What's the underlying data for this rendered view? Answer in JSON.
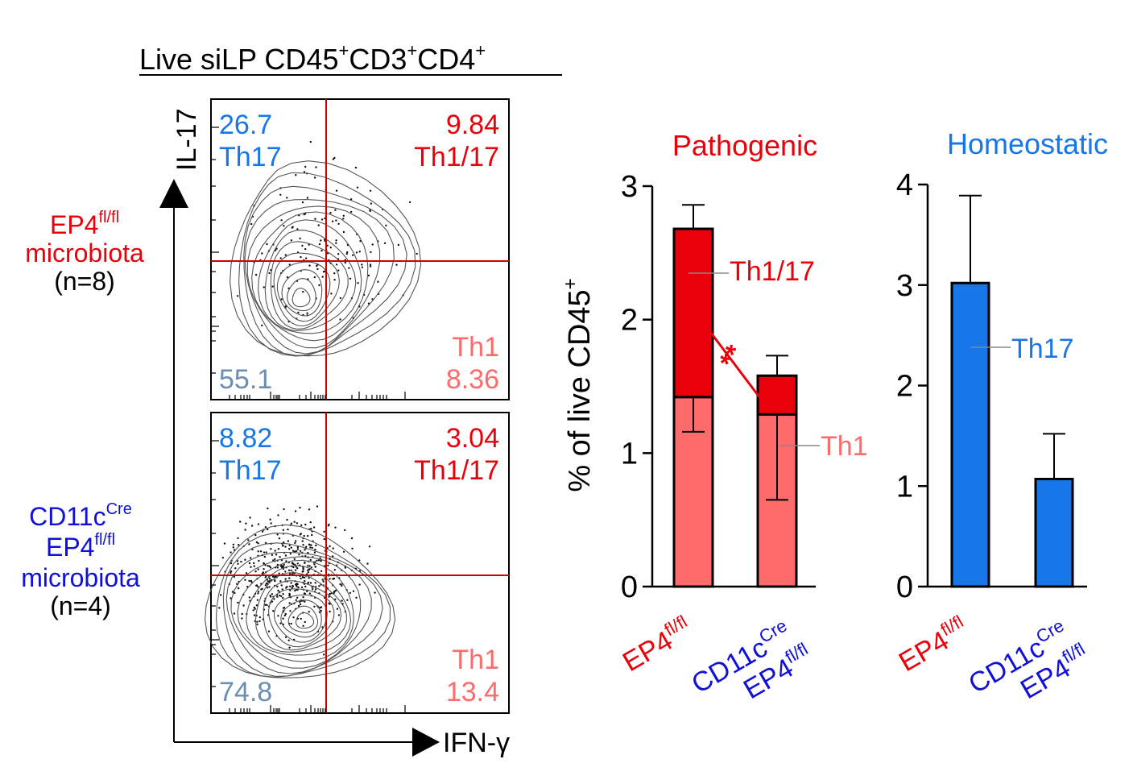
{
  "colors": {
    "red": "#e8000b",
    "th1": "#ff6b6b",
    "blue": "#1877e8",
    "navy": "#1010d8",
    "grey_blue": "#6a8fb3",
    "black": "#000000",
    "gate": "#cc0000"
  },
  "flow": {
    "title": "Live siLP CD45",
    "title_sup1": "+",
    "title_mid1": "CD3",
    "title_sup2": "+",
    "title_mid2": "CD4",
    "title_sup3": "+",
    "y_axis_label": "IL-17",
    "x_axis_label": "IFN-γ",
    "groups": [
      {
        "name": "EP4",
        "name_sup": "fl/fl",
        "line2": "microbiota",
        "n": "(n=8)",
        "q_th17_value": "26.7",
        "q_th17_label": "Th17",
        "q_th117_value": "9.84",
        "q_th117_label": "Th1/17",
        "q_th1_label": "Th1",
        "q_th1_value": "8.36",
        "q_neg_value": "55.1"
      },
      {
        "name": "CD11c",
        "name_sup": "Cre",
        "name2": "EP4",
        "name2_sup": "fl/fl",
        "line3": "microbiota",
        "n": "(n=4)",
        "q_th17_value": "8.82",
        "q_th17_label": "Th17",
        "q_th117_value": "3.04",
        "q_th117_label": "Th1/17",
        "q_th1_label": "Th1",
        "q_th1_value": "13.4",
        "q_neg_value": "74.8"
      }
    ]
  },
  "chart_data": [
    {
      "type": "bar",
      "stacked": true,
      "title": "Pathogenic",
      "ylabel": "% of live CD45",
      "ylabel_sup": "+",
      "ylim": [
        0,
        3
      ],
      "yticks": [
        0,
        1,
        2,
        3
      ],
      "categories": [
        {
          "label": "EP4",
          "sup": "fl/fl"
        },
        {
          "label": "CD11c",
          "sup": "Cre",
          "label2": "EP4",
          "sup2": "fl/fl"
        }
      ],
      "series": [
        {
          "name": "Th1",
          "values": [
            1.42,
            1.29
          ],
          "error_low": [
            1.16,
            0.65
          ]
        },
        {
          "name": "Th1/17",
          "values": [
            1.26,
            0.29
          ],
          "error_high": [
            2.86,
            1.73
          ]
        }
      ],
      "annotations": [
        {
          "text": "**",
          "between": [
            "Th1/17 EP4fl/fl",
            "Th1/17 CD11cCre EP4fl/fl"
          ]
        }
      ]
    },
    {
      "type": "bar",
      "title": "Homeostatic",
      "ylim": [
        0,
        4
      ],
      "yticks": [
        0,
        1,
        2,
        3,
        4
      ],
      "categories": [
        {
          "label": "EP4",
          "sup": "fl/fl"
        },
        {
          "label": "CD11c",
          "sup": "Cre",
          "label2": "EP4",
          "sup2": "fl/fl"
        }
      ],
      "series": [
        {
          "name": "Th17",
          "values": [
            3.02,
            1.07
          ],
          "error_high": [
            3.89,
            1.52
          ]
        }
      ]
    }
  ]
}
